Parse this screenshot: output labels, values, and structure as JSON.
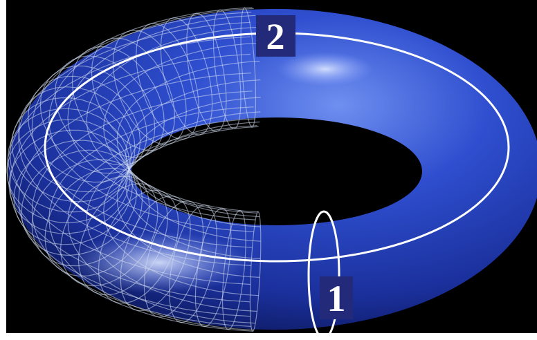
{
  "labels": {
    "small_circle": "1",
    "large_circle": "2"
  }
}
